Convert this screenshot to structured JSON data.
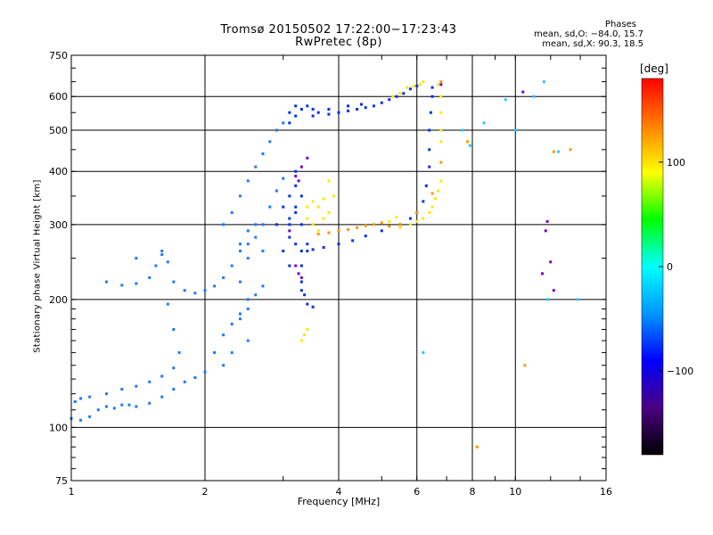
{
  "chart_data": {
    "type": "scatter",
    "title": "Tromsø 20150502 17:22:00−17:23:43",
    "subtitle": "RwPretec (8p)",
    "xlabel": "Frequency [MHz]",
    "ylabel": "Stationary phase Virtual Height [km]",
    "xscale": "log",
    "yscale": "log",
    "xlim": [
      1,
      16
    ],
    "ylim": [
      75,
      750
    ],
    "xticks": [
      1,
      2,
      4,
      6,
      8,
      10,
      16
    ],
    "yticks": [
      75,
      100,
      200,
      300,
      400,
      500,
      600,
      750
    ],
    "xgrid": [
      2,
      4,
      6,
      8,
      10
    ],
    "ygrid": [
      100,
      200,
      300,
      400,
      500,
      600
    ],
    "phases_header": "Phases",
    "phases_o": "mean, sd,O: −84.0, 15.7",
    "phases_x": "mean, sd,X: 90.3, 18.5",
    "colorbar": {
      "unit": "[deg]",
      "ticks": [
        "100",
        "0",
        "−100"
      ],
      "tick_values": [
        100,
        0,
        -100
      ],
      "range": [
        -180,
        180
      ],
      "colors": [
        "#000000",
        "#4b0082",
        "#0000ff",
        "#0096ff",
        "#00ffff",
        "#00ff00",
        "#ffff00",
        "#ff8000",
        "#ff0000"
      ]
    },
    "series": [
      {
        "color": "#1e78ff",
        "points": [
          [
            1.0,
            105
          ],
          [
            1.05,
            104
          ],
          [
            1.1,
            106
          ],
          [
            1.15,
            110
          ],
          [
            1.2,
            112
          ],
          [
            1.25,
            111
          ],
          [
            1.3,
            113
          ],
          [
            1.35,
            113
          ],
          [
            1.4,
            112
          ],
          [
            1.5,
            114
          ],
          [
            1.6,
            118
          ],
          [
            1.7,
            123
          ],
          [
            1.8,
            128
          ],
          [
            1.9,
            131
          ],
          [
            2.0,
            135
          ],
          [
            2.1,
            150
          ],
          [
            2.2,
            165
          ],
          [
            2.3,
            175
          ],
          [
            2.4,
            185
          ],
          [
            2.5,
            190
          ],
          [
            2.6,
            205
          ],
          [
            2.7,
            215
          ],
          [
            1.02,
            115
          ],
          [
            1.05,
            117
          ],
          [
            1.1,
            118
          ],
          [
            1.2,
            120
          ],
          [
            1.3,
            123
          ],
          [
            1.4,
            125
          ],
          [
            1.5,
            128
          ],
          [
            1.6,
            132
          ],
          [
            1.7,
            138
          ],
          [
            1.75,
            150
          ],
          [
            1.7,
            170
          ],
          [
            1.65,
            195
          ],
          [
            1.3,
            216
          ],
          [
            1.4,
            218
          ],
          [
            1.5,
            225
          ],
          [
            1.55,
            240
          ],
          [
            1.6,
            255
          ],
          [
            1.65,
            245
          ],
          [
            1.7,
            220
          ],
          [
            1.8,
            210
          ],
          [
            1.9,
            207
          ],
          [
            2.0,
            210
          ],
          [
            2.1,
            215
          ],
          [
            2.2,
            225
          ],
          [
            2.3,
            240
          ],
          [
            2.4,
            260
          ],
          [
            2.5,
            270
          ],
          [
            2.6,
            280
          ],
          [
            2.7,
            300
          ],
          [
            2.8,
            330
          ],
          [
            2.9,
            360
          ],
          [
            3.0,
            385
          ],
          [
            1.2,
            220
          ],
          [
            1.4,
            250
          ],
          [
            1.6,
            260
          ],
          [
            2.2,
            300
          ],
          [
            2.3,
            320
          ],
          [
            2.4,
            350
          ],
          [
            2.5,
            380
          ],
          [
            2.6,
            410
          ],
          [
            2.7,
            440
          ],
          [
            2.8,
            470
          ],
          [
            2.9,
            500
          ],
          [
            3.0,
            520
          ],
          [
            2.4,
            270
          ],
          [
            2.5,
            290
          ],
          [
            2.5,
            250
          ],
          [
            2.6,
            300
          ],
          [
            2.7,
            260
          ],
          [
            2.4,
            220
          ],
          [
            2.5,
            200
          ],
          [
            2.4,
            180
          ],
          [
            2.5,
            160
          ],
          [
            2.3,
            150
          ],
          [
            2.2,
            140
          ]
        ]
      },
      {
        "color": "#0032e6",
        "points": [
          [
            3.1,
            520
          ],
          [
            3.2,
            540
          ],
          [
            3.3,
            560
          ],
          [
            3.4,
            570
          ],
          [
            3.5,
            560
          ],
          [
            3.6,
            550
          ],
          [
            3.8,
            545
          ],
          [
            4.0,
            550
          ],
          [
            4.2,
            555
          ],
          [
            4.4,
            560
          ],
          [
            4.6,
            565
          ],
          [
            4.8,
            570
          ],
          [
            5.0,
            580
          ],
          [
            5.2,
            590
          ],
          [
            5.4,
            600
          ],
          [
            5.6,
            610
          ],
          [
            5.8,
            625
          ],
          [
            6.0,
            635
          ],
          [
            3.1,
            550
          ],
          [
            3.2,
            570
          ],
          [
            3.5,
            540
          ],
          [
            3.8,
            560
          ],
          [
            4.2,
            570
          ],
          [
            4.5,
            575
          ],
          [
            3.2,
            400
          ],
          [
            3.2,
            370
          ],
          [
            3.3,
            350
          ],
          [
            3.2,
            320
          ],
          [
            3.1,
            300
          ],
          [
            3.1,
            280
          ],
          [
            3.2,
            270
          ],
          [
            3.3,
            260
          ],
          [
            3.4,
            270
          ],
          [
            3.3,
            300
          ],
          [
            3.2,
            330
          ],
          [
            3.1,
            350
          ],
          [
            3.3,
            240
          ],
          [
            3.3,
            220
          ],
          [
            3.35,
            205
          ],
          [
            3.4,
            195
          ],
          [
            3.5,
            192
          ],
          [
            3.3,
            210
          ],
          [
            3.4,
            260
          ],
          [
            3.5,
            262
          ],
          [
            3.7,
            265
          ],
          [
            4.0,
            270
          ],
          [
            4.3,
            275
          ],
          [
            4.6,
            282
          ],
          [
            5.0,
            290
          ],
          [
            5.5,
            300
          ],
          [
            5.8,
            310
          ],
          [
            6.0,
            320
          ],
          [
            6.2,
            340
          ],
          [
            6.3,
            370
          ],
          [
            6.4,
            410
          ],
          [
            6.4,
            450
          ],
          [
            6.4,
            500
          ],
          [
            6.45,
            550
          ],
          [
            6.5,
            600
          ],
          [
            6.5,
            630
          ],
          [
            3.0,
            330
          ],
          [
            3.1,
            310
          ],
          [
            2.9,
            300
          ],
          [
            3.0,
            260
          ],
          [
            3.1,
            240
          ]
        ]
      },
      {
        "color": "#ffe600",
        "points": [
          [
            3.4,
            330
          ],
          [
            3.5,
            340
          ],
          [
            3.6,
            330
          ],
          [
            3.7,
            345
          ],
          [
            3.8,
            380
          ],
          [
            3.9,
            350
          ],
          [
            3.8,
            320
          ],
          [
            3.7,
            310
          ],
          [
            3.5,
            300
          ],
          [
            3.6,
            290
          ],
          [
            3.4,
            310
          ],
          [
            3.3,
            160
          ],
          [
            3.35,
            165
          ],
          [
            3.4,
            170
          ],
          [
            5.3,
            600
          ],
          [
            5.5,
            610
          ],
          [
            5.7,
            630
          ],
          [
            5.9,
            635
          ],
          [
            6.1,
            640
          ],
          [
            6.2,
            650
          ],
          [
            6.7,
            640
          ],
          [
            6.8,
            600
          ],
          [
            6.8,
            550
          ],
          [
            6.8,
            500
          ],
          [
            6.8,
            470
          ],
          [
            5.5,
            295
          ],
          [
            5.8,
            300
          ],
          [
            6.0,
            305
          ],
          [
            6.2,
            310
          ],
          [
            6.4,
            320
          ],
          [
            6.5,
            330
          ],
          [
            6.6,
            345
          ],
          [
            6.7,
            360
          ],
          [
            6.8,
            380
          ],
          [
            5.2,
            305
          ],
          [
            5.4,
            312
          ]
        ]
      },
      {
        "color": "#ff9600",
        "points": [
          [
            3.6,
            285
          ],
          [
            3.8,
            287
          ],
          [
            4.0,
            290
          ],
          [
            4.2,
            292
          ],
          [
            4.4,
            295
          ],
          [
            4.6,
            298
          ],
          [
            4.8,
            300
          ],
          [
            5.0,
            303
          ],
          [
            5.2,
            297
          ],
          [
            5.5,
            300
          ],
          [
            6.0,
            320
          ],
          [
            6.5,
            355
          ],
          [
            6.8,
            420
          ],
          [
            7.8,
            470
          ],
          [
            8.2,
            90
          ],
          [
            10.5,
            140
          ],
          [
            12.2,
            445
          ],
          [
            13.3,
            450
          ],
          [
            6.8,
            650
          ]
        ]
      },
      {
        "color": "#7800c8",
        "points": [
          [
            3.2,
            390
          ],
          [
            3.25,
            380
          ],
          [
            3.1,
            290
          ],
          [
            3.2,
            240
          ],
          [
            3.25,
            230
          ],
          [
            3.3,
            225
          ],
          [
            11.5,
            230
          ],
          [
            11.8,
            305
          ],
          [
            12.0,
            245
          ],
          [
            12.2,
            210
          ],
          [
            11.7,
            290
          ],
          [
            10.4,
            615
          ],
          [
            6.8,
            640
          ],
          [
            3.4,
            430
          ],
          [
            3.3,
            410
          ]
        ]
      },
      {
        "color": "#28c8ff",
        "points": [
          [
            7.9,
            460
          ],
          [
            8.5,
            520
          ],
          [
            9.5,
            590
          ],
          [
            10.0,
            500
          ],
          [
            11.0,
            600
          ],
          [
            12.5,
            445
          ],
          [
            13.8,
            200
          ],
          [
            11.6,
            650
          ],
          [
            6.2,
            150
          ],
          [
            7.6,
            500
          ],
          [
            11.8,
            200
          ]
        ]
      }
    ]
  }
}
